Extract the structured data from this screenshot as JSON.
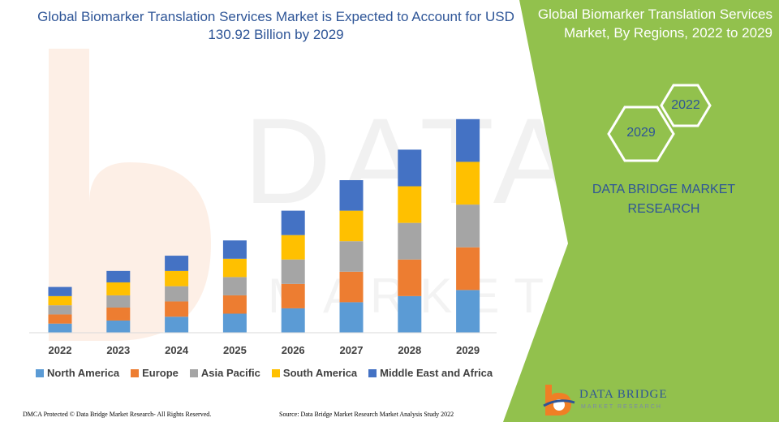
{
  "title": "Global Biomarker Translation Services Market is Expected to Account for USD 130.92 Billion by 2029",
  "side_panel": {
    "title": "Global Biomarker Translation Services Market, By Regions, 2022 to 2029",
    "hex_top": "2022",
    "hex_bottom": "2029",
    "brand_line1": "DATA BRIDGE MARKET",
    "brand_line2": "RESEARCH",
    "logo_text": "DATA BRIDGE",
    "logo_sub": "MARKET RESEARCH",
    "accent_green": "#92c14d",
    "accent_blue": "#2e5597"
  },
  "footer": {
    "left": "DMCA Protected © Data Bridge Market Research- All Rights Reserved.",
    "right": "Source: Data Bridge Market Research Market Analysis Study 2022"
  },
  "chart_data": {
    "type": "bar",
    "stacked": true,
    "categories": [
      "2022",
      "2023",
      "2024",
      "2025",
      "2026",
      "2027",
      "2028",
      "2029"
    ],
    "series": [
      {
        "name": "North America",
        "color": "#5b9bd5",
        "values": [
          12,
          16,
          21,
          25,
          32,
          40,
          48,
          56
        ]
      },
      {
        "name": "Europe",
        "color": "#ed7d31",
        "values": [
          12,
          17,
          20,
          24,
          32,
          40,
          48,
          56
        ]
      },
      {
        "name": "Asia Pacific",
        "color": "#a5a5a5",
        "values": [
          12,
          16,
          20,
          24,
          32,
          40,
          48,
          56
        ]
      },
      {
        "name": "South America",
        "color": "#ffc000",
        "values": [
          12,
          17,
          20,
          24,
          32,
          40,
          48,
          56
        ]
      },
      {
        "name": "Middle East and Africa",
        "color": "#4472c4",
        "values": [
          12,
          15,
          20,
          24,
          32,
          40,
          48,
          56
        ]
      }
    ],
    "ylim": [
      0,
      300
    ],
    "legend_position": "bottom",
    "grid": false
  }
}
